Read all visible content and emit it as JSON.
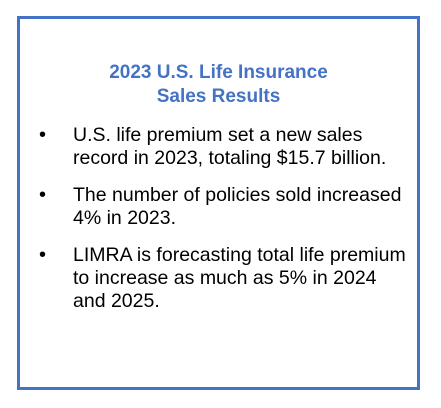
{
  "callout": {
    "title_line1": "2023 U.S. Life Insurance",
    "title_line2": "Sales Results",
    "bullet_symbol": "•",
    "items": [
      {
        "text": "U.S. life premium set a new sales record in 2023, totaling $15.7 billion."
      },
      {
        "text": "The number of policies sold increased 4% in 2023."
      },
      {
        "text": "LIMRA is forecasting total life premium to increase as much as 5% in 2024 and 2025."
      }
    ]
  },
  "colors": {
    "accent": "#4472C4",
    "text": "#000000",
    "background": "#ffffff"
  }
}
